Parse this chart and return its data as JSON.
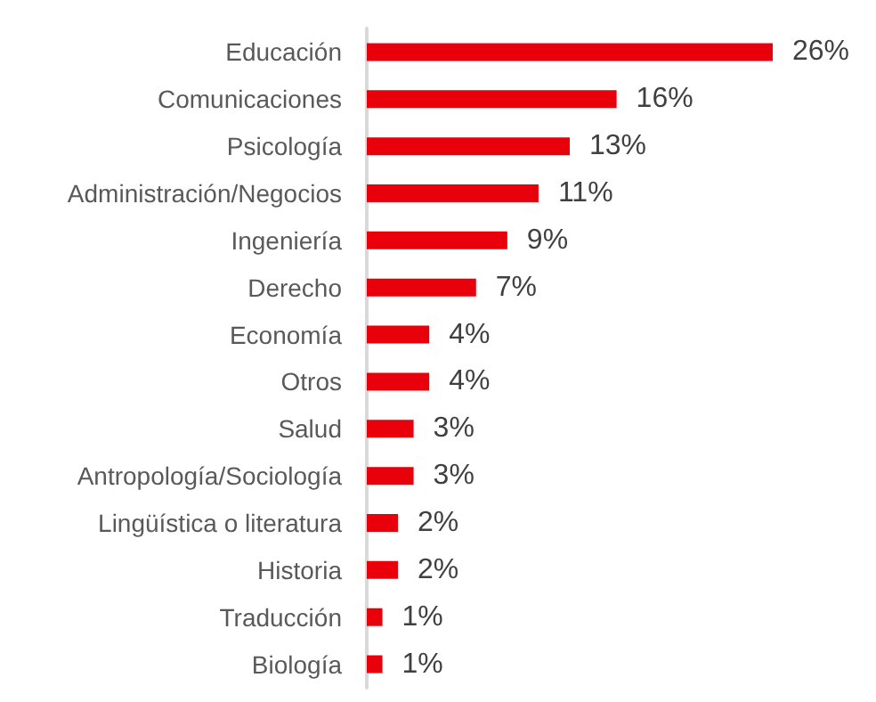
{
  "chart_data": {
    "type": "bar",
    "orientation": "horizontal",
    "tick_labels": "y",
    "categories": [
      "Educación",
      "Comunicaciones",
      "Psicología",
      "Administración/Negocios",
      "Ingeniería",
      "Derecho",
      "Economía",
      "Otros",
      "Salud",
      "Antropología/Sociología",
      "Lingüística o literatura",
      "Historia",
      "Traducción",
      "Biología"
    ],
    "values": [
      26,
      16,
      13,
      11,
      9,
      7,
      4,
      4,
      3,
      3,
      2,
      2,
      1,
      1
    ],
    "value_labels": [
      "26%",
      "16%",
      "13%",
      "11%",
      "9%",
      "7%",
      "4%",
      "4%",
      "3%",
      "3%",
      "2%",
      "2%",
      "1%",
      "1%"
    ],
    "color": "#e8000b"
  }
}
